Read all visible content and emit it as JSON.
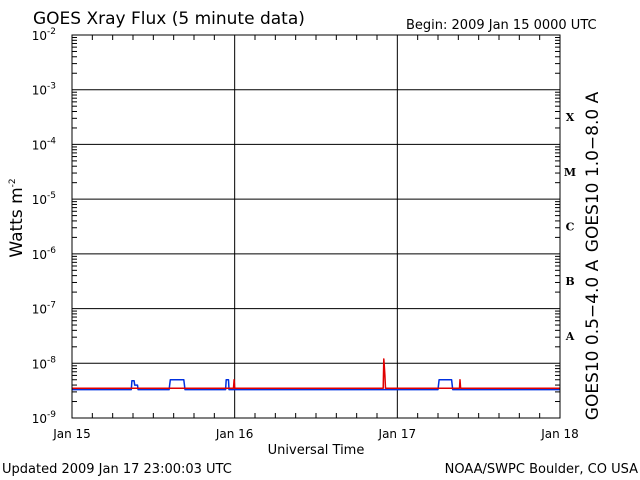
{
  "header": {
    "title": "GOES Xray Flux (5 minute data)",
    "begin": "Begin:  2009 Jan 15 0000 UTC"
  },
  "footer": {
    "updated": "Updated 2009 Jan 17 23:00:03 UTC",
    "source": "NOAA/SWPC Boulder, CO USA"
  },
  "chart_data": {
    "type": "line",
    "title": "GOES Xray Flux (5 minute data)",
    "xlabel": "Universal Time",
    "ylabel_base": "Watts m",
    "ylabel_exp": "-2",
    "yscale": "log",
    "ylim": [
      1e-09,
      0.01
    ],
    "y_ticks": [
      {
        "base": "10",
        "exp": "-9",
        "value": 1e-09
      },
      {
        "base": "10",
        "exp": "-8",
        "value": 1e-08
      },
      {
        "base": "10",
        "exp": "-7",
        "value": 1e-07
      },
      {
        "base": "10",
        "exp": "-6",
        "value": 1e-06
      },
      {
        "base": "10",
        "exp": "-5",
        "value": 1e-05
      },
      {
        "base": "10",
        "exp": "-4",
        "value": 0.0001
      },
      {
        "base": "10",
        "exp": "-3",
        "value": 0.001
      },
      {
        "base": "10",
        "exp": "-2",
        "value": 0.01
      }
    ],
    "xlim": [
      "2009-01-15 00:00",
      "2009-01-18 00:00"
    ],
    "x_ticks": [
      {
        "label": "Jan 15",
        "time": "2009-01-15 00:00"
      },
      {
        "label": "Jan 16",
        "time": "2009-01-16 00:00"
      },
      {
        "label": "Jan 17",
        "time": "2009-01-17 00:00"
      },
      {
        "label": "Jan 18",
        "time": "2009-01-18 00:00"
      }
    ],
    "grid": true,
    "flare_classes": [
      {
        "label": "A",
        "lo": 1e-08,
        "hi": 1e-07
      },
      {
        "label": "B",
        "lo": 1e-07,
        "hi": 1e-06
      },
      {
        "label": "C",
        "lo": 1e-06,
        "hi": 1e-05
      },
      {
        "label": "M",
        "lo": 1e-05,
        "hi": 0.0001
      },
      {
        "label": "X",
        "lo": 0.0001,
        "hi": 0.001
      }
    ],
    "series": [
      {
        "name": "GOES10 1.0−8.0 A",
        "color": "#e00000",
        "points": [
          [
            "2009-01-15 00:00",
            3.5e-09
          ],
          [
            "2009-01-15 23:50",
            3.5e-09
          ],
          [
            "2009-01-15 23:55",
            5e-09
          ],
          [
            "2009-01-16 00:00",
            3.5e-09
          ],
          [
            "2009-01-16 21:55",
            3.5e-09
          ],
          [
            "2009-01-16 22:00",
            1.2e-08
          ],
          [
            "2009-01-16 22:05",
            9e-09
          ],
          [
            "2009-01-16 22:10",
            6e-09
          ],
          [
            "2009-01-16 22:15",
            3.5e-09
          ],
          [
            "2009-01-17 09:10",
            3.5e-09
          ],
          [
            "2009-01-17 09:15",
            5e-09
          ],
          [
            "2009-01-17 09:20",
            3.5e-09
          ],
          [
            "2009-01-18 00:00",
            3.5e-09
          ]
        ]
      },
      {
        "name": "GOES10 0.5−4.0 A",
        "color": "#0030e0",
        "points": [
          [
            "2009-01-15 00:00",
            3.3e-09
          ],
          [
            "2009-01-15 08:45",
            3.3e-09
          ],
          [
            "2009-01-15 08:50",
            4.8e-09
          ],
          [
            "2009-01-15 09:10",
            4.8e-09
          ],
          [
            "2009-01-15 09:15",
            4e-09
          ],
          [
            "2009-01-15 09:40",
            4e-09
          ],
          [
            "2009-01-15 09:45",
            3.3e-09
          ],
          [
            "2009-01-15 14:20",
            3.3e-09
          ],
          [
            "2009-01-15 14:30",
            5e-09
          ],
          [
            "2009-01-15 16:30",
            5e-09
          ],
          [
            "2009-01-15 16:40",
            3.3e-09
          ],
          [
            "2009-01-15 22:40",
            3.3e-09
          ],
          [
            "2009-01-15 22:45",
            5e-09
          ],
          [
            "2009-01-15 23:05",
            5e-09
          ],
          [
            "2009-01-15 23:10",
            3.3e-09
          ],
          [
            "2009-01-17 06:00",
            3.3e-09
          ],
          [
            "2009-01-17 06:10",
            5e-09
          ],
          [
            "2009-01-17 08:00",
            5e-09
          ],
          [
            "2009-01-17 08:10",
            3.3e-09
          ],
          [
            "2009-01-18 00:00",
            3.3e-09
          ]
        ]
      }
    ]
  }
}
